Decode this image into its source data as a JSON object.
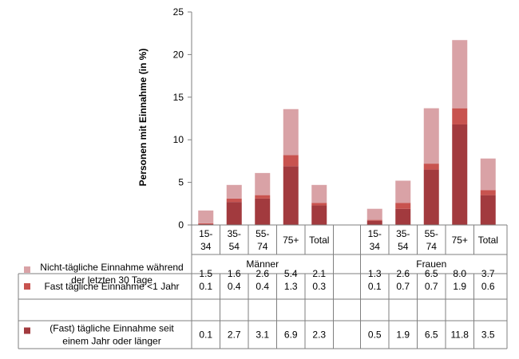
{
  "chart_data": {
    "type": "bar",
    "stacked": true,
    "ylabel": "Personen mit Einnahme (in %)",
    "ylim": [
      0,
      25
    ],
    "yticks": [
      0,
      5,
      10,
      15,
      20,
      25
    ],
    "groups": [
      {
        "name": "Männer",
        "categories": [
          [
            "15-",
            "34"
          ],
          [
            "35-",
            "54"
          ],
          [
            "55-",
            "74"
          ],
          [
            "75+"
          ],
          [
            "Total"
          ]
        ]
      },
      {
        "name": "Frauen",
        "categories": [
          [
            "15-",
            "34"
          ],
          [
            "35-",
            "54"
          ],
          [
            "55-",
            "74"
          ],
          [
            "75+"
          ],
          [
            "Total"
          ]
        ]
      }
    ],
    "series": [
      {
        "name_lines": [
          "(Fast) tägliche Einnahme seit",
          "einem Jahr oder länger"
        ],
        "color": "#a23a3e",
        "values": [
          [
            0.1,
            2.7,
            3.1,
            6.9,
            2.3
          ],
          [
            0.5,
            1.9,
            6.5,
            11.8,
            3.5
          ]
        ]
      },
      {
        "name_lines": [
          "Fast tägliche Einnahme <1 Jahr"
        ],
        "color": "#c8534f",
        "values": [
          [
            0.1,
            0.4,
            0.4,
            1.3,
            0.3
          ],
          [
            0.1,
            0.7,
            0.7,
            1.9,
            0.6
          ]
        ]
      },
      {
        "name_lines": [
          "Nicht-tägliche Einnahme während",
          "der letzten 30 Tage"
        ],
        "color": "#d9a2a6",
        "values": [
          [
            1.5,
            1.6,
            2.6,
            5.4,
            2.1
          ],
          [
            1.3,
            2.6,
            6.5,
            8.0,
            3.7
          ]
        ]
      }
    ],
    "table_row_order": [
      2,
      1,
      0
    ],
    "grid": false,
    "legend": "data table below chart"
  }
}
